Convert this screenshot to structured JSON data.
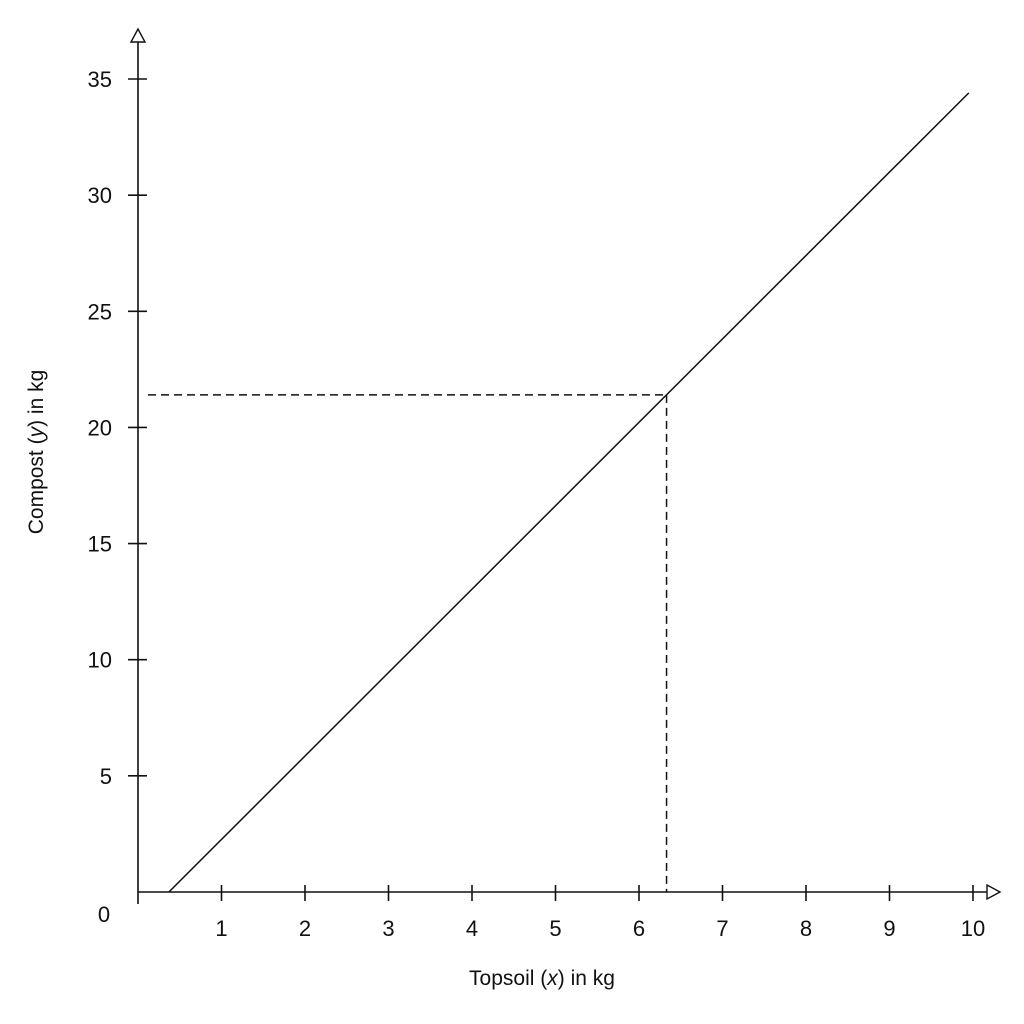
{
  "chart_data": {
    "type": "line",
    "title": "",
    "xlabel": {
      "prefix": "Topsoil (",
      "variable": "x",
      "suffix": ") in kg"
    },
    "ylabel": {
      "prefix": "Compost (",
      "variable": "y",
      "suffix": ") in kg"
    },
    "xlim": [
      0,
      10
    ],
    "ylim": [
      0,
      35
    ],
    "x_ticks": [
      1,
      2,
      3,
      4,
      5,
      6,
      7,
      8,
      9,
      10
    ],
    "y_ticks": [
      5,
      10,
      15,
      20,
      25,
      30,
      35
    ],
    "origin_label": "0",
    "grid": false,
    "series": [
      {
        "points": [
          [
            0.37,
            0
          ],
          [
            9.95,
            34.4
          ]
        ]
      }
    ],
    "annotations": [
      {
        "type": "dashed-guide",
        "x": 6.33,
        "y": 21.4
      }
    ]
  }
}
